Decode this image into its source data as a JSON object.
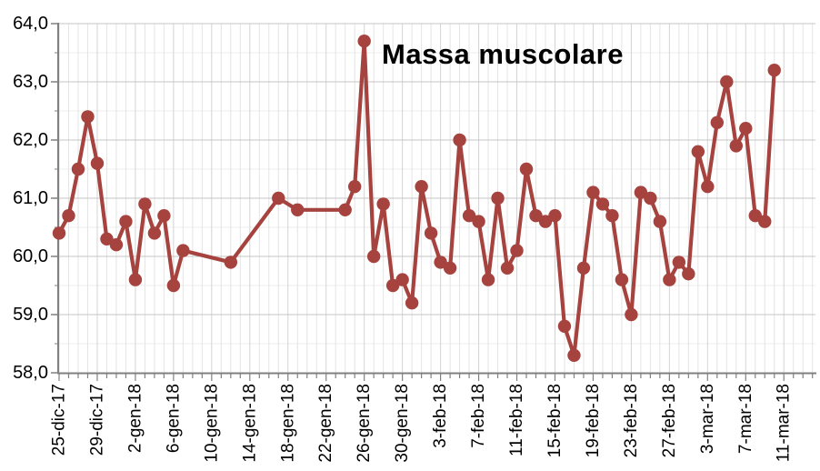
{
  "chart_data": {
    "type": "line",
    "title": "Massa muscolare",
    "series_name": "Massa muscolare",
    "ylim": [
      58.0,
      64.0
    ],
    "y_major_step": 1.0,
    "y_minor_step": 0.5,
    "y_tick_labels": [
      "58,0",
      "59,0",
      "60,0",
      "61,0",
      "62,0",
      "63,0",
      "64,0"
    ],
    "x_tick_label_every_days": 4,
    "x_tick_labels": [
      "25-dic-17",
      "29-dic-17",
      "2-gen-18",
      "6-gen-18",
      "10-gen-18",
      "14-gen-18",
      "18-gen-18",
      "22-gen-18",
      "26-gen-18",
      "30-gen-18",
      "3-feb-18",
      "7-feb-18",
      "11-feb-18",
      "15-feb-18",
      "19-feb-18",
      "23-feb-18",
      "27-feb-18",
      "3-mar-18",
      "7-mar-18",
      "11-mar-18"
    ],
    "grid": "on",
    "legend": "none",
    "points": [
      {
        "day": 0,
        "date": "25-dic-17",
        "value": 60.4
      },
      {
        "day": 1,
        "date": "26-dic-17",
        "value": 60.7
      },
      {
        "day": 2,
        "date": "27-dic-17",
        "value": 61.5
      },
      {
        "day": 3,
        "date": "28-dic-17",
        "value": 62.4
      },
      {
        "day": 4,
        "date": "29-dic-17",
        "value": 61.6
      },
      {
        "day": 5,
        "date": "30-dic-17",
        "value": 60.3
      },
      {
        "day": 6,
        "date": "31-dic-17",
        "value": 60.2
      },
      {
        "day": 7,
        "date": "1-gen-18",
        "value": 60.6
      },
      {
        "day": 8,
        "date": "2-gen-18",
        "value": 59.6
      },
      {
        "day": 9,
        "date": "3-gen-18",
        "value": 60.9
      },
      {
        "day": 10,
        "date": "4-gen-18",
        "value": 60.4
      },
      {
        "day": 11,
        "date": "5-gen-18",
        "value": 60.7
      },
      {
        "day": 12,
        "date": "6-gen-18",
        "value": 59.5
      },
      {
        "day": 13,
        "date": "7-gen-18",
        "value": 60.1
      },
      {
        "day": 18,
        "date": "12-gen-18",
        "value": 59.9
      },
      {
        "day": 23,
        "date": "17-gen-18",
        "value": 61.0
      },
      {
        "day": 25,
        "date": "19-gen-18",
        "value": 60.8
      },
      {
        "day": 30,
        "date": "24-gen-18",
        "value": 60.8
      },
      {
        "day": 31,
        "date": "25-gen-18",
        "value": 61.2
      },
      {
        "day": 32,
        "date": "26-gen-18",
        "value": 63.7
      },
      {
        "day": 33,
        "date": "27-gen-18",
        "value": 60.0
      },
      {
        "day": 34,
        "date": "28-gen-18",
        "value": 60.9
      },
      {
        "day": 35,
        "date": "29-gen-18",
        "value": 59.5
      },
      {
        "day": 36,
        "date": "30-gen-18",
        "value": 59.6
      },
      {
        "day": 37,
        "date": "31-gen-18",
        "value": 59.2
      },
      {
        "day": 38,
        "date": "1-feb-18",
        "value": 61.2
      },
      {
        "day": 39,
        "date": "2-feb-18",
        "value": 60.4
      },
      {
        "day": 40,
        "date": "3-feb-18",
        "value": 59.9
      },
      {
        "day": 41,
        "date": "4-feb-18",
        "value": 59.8
      },
      {
        "day": 42,
        "date": "5-feb-18",
        "value": 62.0
      },
      {
        "day": 43,
        "date": "6-feb-18",
        "value": 60.7
      },
      {
        "day": 44,
        "date": "7-feb-18",
        "value": 60.6
      },
      {
        "day": 45,
        "date": "8-feb-18",
        "value": 59.6
      },
      {
        "day": 46,
        "date": "9-feb-18",
        "value": 61.0
      },
      {
        "day": 47,
        "date": "10-feb-18",
        "value": 59.8
      },
      {
        "day": 48,
        "date": "11-feb-18",
        "value": 60.1
      },
      {
        "day": 49,
        "date": "12-feb-18",
        "value": 61.5
      },
      {
        "day": 50,
        "date": "13-feb-18",
        "value": 60.7
      },
      {
        "day": 51,
        "date": "14-feb-18",
        "value": 60.6
      },
      {
        "day": 52,
        "date": "15-feb-18",
        "value": 60.7
      },
      {
        "day": 53,
        "date": "16-feb-18",
        "value": 58.8
      },
      {
        "day": 54,
        "date": "17-feb-18",
        "value": 58.3
      },
      {
        "day": 55,
        "date": "18-feb-18",
        "value": 59.8
      },
      {
        "day": 56,
        "date": "19-feb-18",
        "value": 61.1
      },
      {
        "day": 57,
        "date": "20-feb-18",
        "value": 60.9
      },
      {
        "day": 58,
        "date": "21-feb-18",
        "value": 60.7
      },
      {
        "day": 59,
        "date": "22-feb-18",
        "value": 59.6
      },
      {
        "day": 60,
        "date": "23-feb-18",
        "value": 59.0
      },
      {
        "day": 61,
        "date": "24-feb-18",
        "value": 61.1
      },
      {
        "day": 62,
        "date": "25-feb-18",
        "value": 61.0
      },
      {
        "day": 63,
        "date": "26-feb-18",
        "value": 60.6
      },
      {
        "day": 64,
        "date": "27-feb-18",
        "value": 59.6
      },
      {
        "day": 65,
        "date": "28-feb-18",
        "value": 59.9
      },
      {
        "day": 66,
        "date": "1-mar-18",
        "value": 59.7
      },
      {
        "day": 67,
        "date": "2-mar-18",
        "value": 61.8
      },
      {
        "day": 68,
        "date": "3-mar-18",
        "value": 61.2
      },
      {
        "day": 69,
        "date": "4-mar-18",
        "value": 62.3
      },
      {
        "day": 70,
        "date": "5-mar-18",
        "value": 63.0
      },
      {
        "day": 71,
        "date": "6-mar-18",
        "value": 61.9
      },
      {
        "day": 72,
        "date": "7-mar-18",
        "value": 62.2
      },
      {
        "day": 73,
        "date": "8-mar-18",
        "value": 60.7
      },
      {
        "day": 74,
        "date": "9-mar-18",
        "value": 60.6
      },
      {
        "day": 75,
        "date": "10-mar-18",
        "value": 63.2
      }
    ],
    "colors": {
      "line": "#A6433F",
      "marker": "#A6433F",
      "grid_major_h": "#c4c4c4",
      "grid_minor_h": "#ececec",
      "grid_major_v": "#d4d4d4",
      "grid_minor_v": "#e4e4e4",
      "axis": "#808080",
      "text": "#000000",
      "background": "#ffffff"
    }
  }
}
